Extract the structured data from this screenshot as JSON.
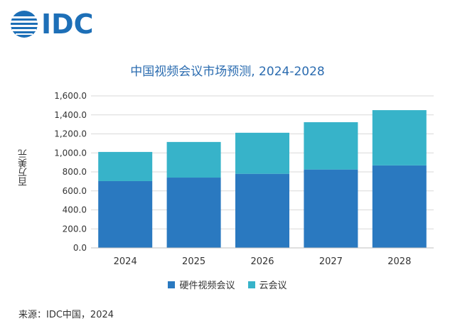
{
  "logo": {
    "text": "IDC"
  },
  "colors": {
    "hardware": "#2a79c0",
    "cloud": "#37b3c9",
    "brand": "#1d6fb7"
  },
  "chart_data": {
    "type": "bar",
    "stacked": true,
    "title": "中国视频会议市场预测, 2024-2028",
    "ylabel": "百万美元",
    "xlabel": "",
    "categories": [
      "2024",
      "2025",
      "2026",
      "2027",
      "2028"
    ],
    "series": [
      {
        "name": "硬件视频会议",
        "values": [
          703,
          740,
          780,
          825,
          868
        ]
      },
      {
        "name": "云会议",
        "values": [
          307,
          375,
          432,
          498,
          582
        ]
      }
    ],
    "ylim": [
      0,
      1600
    ],
    "yticks": [
      "0.0",
      "200.0",
      "400.0",
      "600.0",
      "800.0",
      "1,000.0",
      "1,200.0",
      "1,400.0",
      "1,600.0"
    ],
    "grid": true,
    "legend_position": "bottom"
  },
  "source": "来源：IDC中国，2024"
}
